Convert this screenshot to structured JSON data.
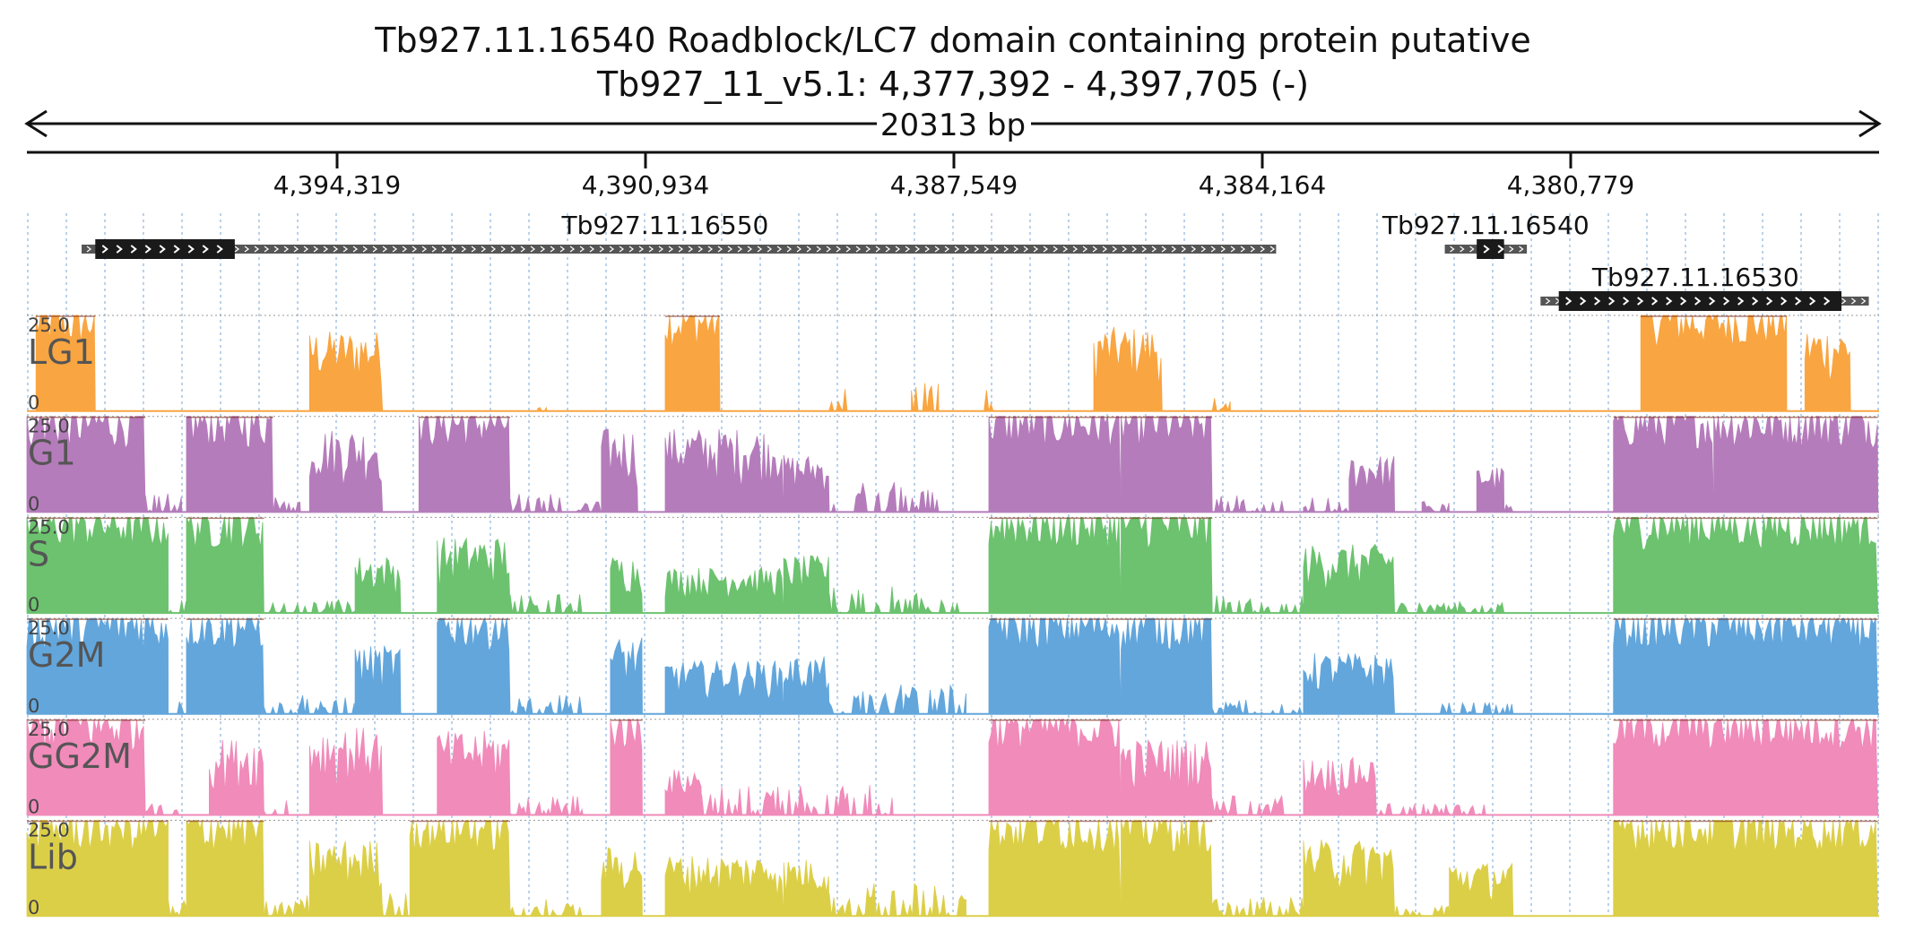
{
  "header": {
    "title": "Tb927.11.16540  Roadblock/LC7 domain containing protein  putative",
    "location": "Tb927_11_v5.1: 4,377,392 - 4,397,705 (-)",
    "span": "20313 bp"
  },
  "region": {
    "start": 4377392,
    "end": 4397705,
    "strand": "-"
  },
  "ruler": {
    "ticks": [
      "4,394,319",
      "4,390,934",
      "4,387,549",
      "4,384,164",
      "4,380,779"
    ]
  },
  "genes": [
    {
      "name": "Tb927.11.16550",
      "start_kb": 0.6,
      "end_kb": 13.7,
      "cds": [
        [
          0.75,
          2.28
        ]
      ],
      "row": 0,
      "label_at_kb": 7.0
    },
    {
      "name": "Tb927.11.16540",
      "start_kb": 15.55,
      "end_kb": 16.45,
      "cds": [
        [
          15.9,
          16.2
        ]
      ],
      "row": 0,
      "label_at_kb": 16.0
    },
    {
      "name": "Tb927.11.16530",
      "start_kb": 16.6,
      "end_kb": 20.2,
      "cds": [
        [
          16.8,
          19.9
        ]
      ],
      "row": 1,
      "label_at_kb": 18.3
    }
  ],
  "chart_data": {
    "type": "area",
    "x_unit": "kb from left edge of view",
    "x_range": [
      0,
      20.313
    ],
    "ylim": [
      0,
      25.0
    ],
    "y_tick_labels": [
      "25.0",
      "0"
    ],
    "series": [
      {
        "name": "LG1",
        "color": "#f9a541",
        "segments": [
          [
            0.1,
            0.75,
            25
          ],
          [
            3.1,
            3.9,
            21
          ],
          [
            7.0,
            7.6,
            25
          ],
          [
            11.7,
            12.45,
            22
          ],
          [
            17.7,
            19.3,
            25
          ],
          [
            19.5,
            20.0,
            22
          ]
        ],
        "sparse": [
          [
            5.6,
            5.7,
            1
          ],
          [
            8.8,
            9.05,
            6
          ],
          [
            9.7,
            10.0,
            8
          ],
          [
            10.5,
            10.65,
            6
          ],
          [
            13.0,
            13.2,
            4
          ]
        ]
      },
      {
        "name": "G1",
        "color": "#b57cbb",
        "segments": [
          [
            0.0,
            1.3,
            25
          ],
          [
            1.75,
            2.7,
            25
          ],
          [
            3.1,
            3.9,
            22
          ],
          [
            4.3,
            5.3,
            25
          ],
          [
            6.3,
            6.7,
            22
          ],
          [
            7.0,
            8.3,
            22
          ],
          [
            8.3,
            8.8,
            15
          ],
          [
            10.55,
            12.0,
            25
          ],
          [
            12.0,
            13.0,
            25
          ],
          [
            14.5,
            15.0,
            15
          ],
          [
            15.9,
            16.2,
            12
          ],
          [
            17.4,
            18.5,
            25
          ],
          [
            18.5,
            20.3,
            25
          ]
        ],
        "sparse": [
          [
            1.3,
            1.7,
            6
          ],
          [
            2.7,
            3.0,
            4
          ],
          [
            5.3,
            5.9,
            5
          ],
          [
            6.0,
            6.3,
            3
          ],
          [
            8.8,
            10.0,
            8
          ],
          [
            13.0,
            13.8,
            5
          ],
          [
            14.0,
            14.5,
            4
          ],
          [
            15.3,
            15.6,
            3
          ],
          [
            16.2,
            16.3,
            4
          ]
        ]
      },
      {
        "name": "S",
        "color": "#6cc26f",
        "segments": [
          [
            0.0,
            1.55,
            25
          ],
          [
            1.75,
            2.6,
            25
          ],
          [
            3.6,
            4.1,
            15
          ],
          [
            4.5,
            5.3,
            20
          ],
          [
            6.4,
            6.75,
            15
          ],
          [
            7.0,
            8.3,
            12
          ],
          [
            8.3,
            8.8,
            15
          ],
          [
            10.55,
            12.0,
            25
          ],
          [
            12.0,
            13.0,
            25
          ],
          [
            14.0,
            15.0,
            18
          ],
          [
            17.4,
            20.3,
            25
          ]
        ],
        "sparse": [
          [
            1.5,
            1.75,
            4
          ],
          [
            2.6,
            3.0,
            3
          ],
          [
            3.0,
            3.6,
            4
          ],
          [
            5.3,
            6.1,
            5
          ],
          [
            8.8,
            10.3,
            7
          ],
          [
            13.0,
            14.0,
            5
          ],
          [
            15.0,
            16.2,
            3
          ]
        ]
      },
      {
        "name": "G2M",
        "color": "#62a6dc",
        "segments": [
          [
            0.0,
            1.55,
            25
          ],
          [
            1.75,
            2.6,
            25
          ],
          [
            3.6,
            4.1,
            18
          ],
          [
            4.5,
            5.3,
            25
          ],
          [
            6.4,
            6.75,
            20
          ],
          [
            7.0,
            8.3,
            14
          ],
          [
            8.3,
            8.8,
            15
          ],
          [
            10.55,
            12.0,
            25
          ],
          [
            12.0,
            13.0,
            25
          ],
          [
            14.0,
            15.0,
            16
          ],
          [
            17.4,
            20.3,
            25
          ]
        ],
        "sparse": [
          [
            1.5,
            1.75,
            4
          ],
          [
            2.6,
            3.0,
            3
          ],
          [
            3.0,
            3.6,
            5
          ],
          [
            5.3,
            6.1,
            5
          ],
          [
            8.8,
            10.3,
            8
          ],
          [
            13.0,
            14.0,
            4
          ],
          [
            15.4,
            16.3,
            3
          ]
        ]
      },
      {
        "name": "GG2M",
        "color": "#f08bba",
        "segments": [
          [
            0.0,
            1.3,
            25
          ],
          [
            2.0,
            2.6,
            20
          ],
          [
            3.1,
            3.9,
            23
          ],
          [
            4.5,
            5.3,
            22
          ],
          [
            6.4,
            6.75,
            25
          ],
          [
            7.0,
            7.4,
            12
          ],
          [
            10.55,
            12.0,
            25
          ],
          [
            12.0,
            13.0,
            20
          ],
          [
            14.0,
            14.8,
            15
          ],
          [
            17.4,
            20.3,
            25
          ]
        ],
        "sparse": [
          [
            1.3,
            1.7,
            3
          ],
          [
            2.6,
            2.9,
            4
          ],
          [
            5.3,
            6.1,
            5
          ],
          [
            7.4,
            9.5,
            8
          ],
          [
            13.0,
            13.8,
            5
          ],
          [
            14.8,
            16.0,
            3
          ]
        ]
      },
      {
        "name": "Lib",
        "color": "#dccf48",
        "segments": [
          [
            0.0,
            1.55,
            25
          ],
          [
            1.75,
            2.6,
            25
          ],
          [
            3.1,
            3.9,
            20
          ],
          [
            4.2,
            5.3,
            25
          ],
          [
            6.3,
            6.75,
            18
          ],
          [
            7.0,
            8.3,
            16
          ],
          [
            8.3,
            8.8,
            15
          ],
          [
            10.55,
            12.0,
            25
          ],
          [
            12.0,
            13.0,
            25
          ],
          [
            14.0,
            15.0,
            20
          ],
          [
            15.6,
            16.3,
            14
          ],
          [
            17.4,
            20.3,
            25
          ]
        ],
        "sparse": [
          [
            1.5,
            1.75,
            5
          ],
          [
            2.6,
            3.0,
            4
          ],
          [
            3.0,
            4.2,
            6
          ],
          [
            5.3,
            6.1,
            6
          ],
          [
            8.8,
            10.3,
            9
          ],
          [
            13.0,
            14.0,
            5
          ],
          [
            15.0,
            15.6,
            3
          ]
        ]
      }
    ]
  }
}
